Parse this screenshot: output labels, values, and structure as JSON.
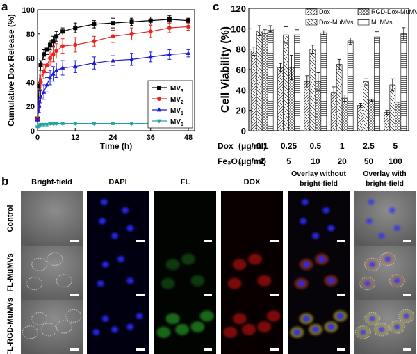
{
  "panels": {
    "a": {
      "label": "a"
    },
    "b": {
      "label": "b"
    },
    "c": {
      "label": "c"
    }
  },
  "chart_data": [
    {
      "panel": "a",
      "type": "line",
      "xlabel": "Time (h)",
      "ylabel": "Cumulative Dox Release (%)",
      "xlim": [
        0,
        50
      ],
      "ylim": [
        0,
        100
      ],
      "xticks": [
        0,
        12,
        24,
        36,
        48
      ],
      "yticks": [
        0,
        20,
        40,
        60,
        80,
        100
      ],
      "grid": false,
      "legend_position": "right-middle",
      "series": [
        {
          "name": "MV",
          "subscript": "3",
          "color": "#000000",
          "marker": "square",
          "x": [
            0,
            0.5,
            1,
            2,
            3,
            4,
            5,
            6,
            8,
            12,
            18,
            24,
            30,
            36,
            42,
            48
          ],
          "y": [
            10,
            37,
            54,
            63,
            67,
            71,
            74,
            78,
            82,
            85,
            88,
            89,
            90,
            91,
            92,
            91
          ],
          "err": [
            1,
            4,
            4,
            4,
            4,
            4,
            4,
            4,
            3,
            4,
            3,
            4,
            3,
            3,
            3,
            2
          ]
        },
        {
          "name": "MV",
          "subscript": "2",
          "color": "#e8261f",
          "marker": "circle",
          "x": [
            0,
            0.5,
            1,
            2,
            3,
            4,
            5,
            6,
            8,
            12,
            18,
            24,
            30,
            36,
            42,
            48
          ],
          "y": [
            10,
            20,
            40,
            49,
            54,
            60,
            63,
            66,
            70,
            71,
            74,
            78,
            80,
            82,
            85,
            86
          ],
          "err": [
            1,
            5,
            6,
            6,
            6,
            6,
            6,
            6,
            6,
            6,
            4,
            5,
            5,
            5,
            4,
            3
          ]
        },
        {
          "name": "MV",
          "subscript": "1",
          "color": "#1b1bd8",
          "marker": "triangle-up",
          "x": [
            0,
            0.5,
            1,
            2,
            3,
            4,
            5,
            6,
            8,
            12,
            18,
            24,
            30,
            36,
            42,
            48
          ],
          "y": [
            9,
            20,
            28,
            32,
            38,
            44,
            47,
            50,
            52,
            53,
            56,
            58,
            59,
            61,
            63,
            64
          ],
          "err": [
            1,
            5,
            5,
            6,
            6,
            6,
            6,
            6,
            6,
            5,
            5,
            4,
            5,
            4,
            4,
            3
          ]
        },
        {
          "name": "MV",
          "subscript": "0",
          "color": "#20a7a0",
          "marker": "triangle-down",
          "x": [
            0,
            0.5,
            1,
            2,
            3,
            4,
            5,
            6,
            8,
            12,
            18,
            24,
            30,
            36,
            42,
            48
          ],
          "y": [
            3,
            4,
            5,
            5,
            5,
            6,
            6,
            6,
            6,
            6,
            6,
            6,
            6,
            6,
            6,
            6
          ],
          "err": [
            0.5,
            1,
            1,
            1,
            1,
            1,
            1,
            1,
            1,
            1,
            1,
            1,
            1,
            1,
            1,
            1
          ]
        }
      ]
    },
    {
      "panel": "c",
      "type": "bar",
      "ylabel": "Cell Viability (%)",
      "ylim": [
        0,
        120
      ],
      "yticks": [
        0,
        20,
        40,
        60,
        80,
        100,
        120
      ],
      "legend_position": "top",
      "categories": [
        "0.1",
        "0.25",
        "0.5",
        "1",
        "2.5",
        "5"
      ],
      "row_labels": [
        {
          "name": "Dox",
          "unit": "(μg/ml)",
          "values": [
            "0.1",
            "0.25",
            "0.5",
            "1",
            "2.5",
            "5"
          ]
        },
        {
          "name": "Fe₃O₄",
          "unit": "(μg/ml)",
          "values": [
            "2",
            "5",
            "10",
            "20",
            "50",
            "100"
          ]
        }
      ],
      "series": [
        {
          "name": "Dox",
          "pattern": "diag-fine",
          "values": [
            78,
            62,
            48,
            37,
            25,
            18
          ],
          "err": [
            4,
            4,
            6,
            6,
            2,
            2
          ]
        },
        {
          "name": "Dox-MuMVs",
          "pattern": "diag-back",
          "values": [
            98,
            94,
            80,
            65,
            48,
            45
          ],
          "err": [
            5,
            8,
            4,
            5,
            3,
            6
          ]
        },
        {
          "name": "RGD-Dox-MuMVs",
          "pattern": "crosshatch",
          "values": [
            95,
            62,
            48,
            32,
            30,
            26
          ],
          "err": [
            4,
            12,
            9,
            3,
            1,
            2
          ]
        },
        {
          "name": "MuMVs",
          "pattern": "horizontal",
          "values": [
            100,
            94,
            96,
            88,
            92,
            95
          ],
          "err": [
            3,
            5,
            2,
            3,
            5,
            6
          ]
        }
      ]
    }
  ],
  "micrographs": {
    "columns": [
      "Bright-field",
      "DAPI",
      "FL",
      "DOX",
      "Overlay without bright-field",
      "Overlay with bright-field"
    ],
    "rows": [
      "Control",
      "FL-MuMVs",
      "FL-RGD-MuMVs"
    ]
  }
}
